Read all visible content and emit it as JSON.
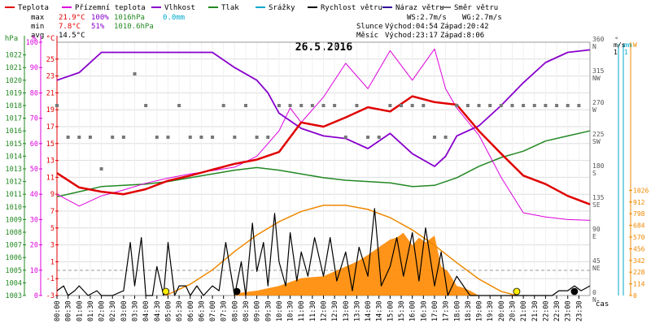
{
  "legend": [
    {
      "label": "Teplota",
      "color": "#e00000"
    },
    {
      "label": "Přízemní teplota",
      "color": "#dd00dd"
    },
    {
      "label": "Vlhkost",
      "color": "#8800cc"
    },
    {
      "label": "Tlak",
      "color": "#228822"
    },
    {
      "label": "Srážky",
      "color": "#00aacc"
    },
    {
      "label": "Rychlost větru",
      "color": "#000000"
    },
    {
      "label": "Náraz větru",
      "color": "#330099"
    },
    {
      "label": "Směr větru",
      "color": "#777777"
    }
  ],
  "stats": {
    "max_label": "max",
    "max_temp": "21.9°C",
    "max_hum": "100%",
    "max_press": "1016hPa",
    "max_rain": "0.0mm",
    "min_label": "min",
    "min_temp": "7.8°C",
    "min_hum": "51%",
    "min_press": "1010.6hPa",
    "avg_label": "avg",
    "avg_temp": "14.5°C"
  },
  "wind_info": {
    "ws": "WS:2.7m/s",
    "wg": "WG:2.7m/s"
  },
  "sun": {
    "label": "Slunce",
    "rise": "Východ:04:54",
    "set": "Západ:20:42"
  },
  "moon": {
    "label": "Měsíc",
    "rise": "Východ:23:17",
    "set": "Západ:8:06"
  },
  "title": "26.5.2016",
  "xaxis_unit": "čas",
  "colors": {
    "temp": "#e00000",
    "ground": "#dd00dd",
    "hum": "#8800cc",
    "press": "#228822",
    "rain": "#00aacc",
    "wind": "#000000",
    "gust": "#ff8800",
    "dir": "#777777",
    "sun": "#ee8800",
    "grid": "#dddddd"
  },
  "chart_data": {
    "type": "line",
    "title": "26.5.2016",
    "x_ticks": [
      "00:00",
      "00:30",
      "01:00",
      "01:30",
      "02:00",
      "02:30",
      "03:00",
      "03:30",
      "04:00",
      "04:30",
      "05:00",
      "05:30",
      "06:00",
      "06:30",
      "07:00",
      "07:30",
      "08:00",
      "08:30",
      "09:00",
      "09:30",
      "10:00",
      "10:30",
      "11:00",
      "11:30",
      "12:00",
      "12:30",
      "13:00",
      "13:30",
      "14:00",
      "14:30",
      "15:00",
      "15:30",
      "16:00",
      "16:30",
      "17:00",
      "17:30",
      "18:00",
      "18:30",
      "19:00",
      "19:30",
      "20:00",
      "20:30",
      "21:00",
      "21:30",
      "22:00",
      "22:30",
      "23:00",
      "23:30"
    ],
    "axes": {
      "hpa": {
        "label": "hPa",
        "range": [
          1003,
          1023
        ],
        "ticks": [
          1003,
          1004,
          1005,
          1006,
          1007,
          1008,
          1009,
          1010,
          1011,
          1012,
          1013,
          1014,
          1015,
          1016,
          1017,
          1018,
          1019,
          1020,
          1021,
          1022
        ]
      },
      "percent": {
        "label": "%",
        "range": [
          0,
          100
        ],
        "ticks": [
          0,
          10,
          20,
          30,
          40,
          50,
          60,
          70,
          80,
          90,
          100
        ]
      },
      "celsius": {
        "label": "°C",
        "range": [
          -3,
          27
        ],
        "ticks": [
          -3,
          -1,
          1,
          3,
          5,
          7,
          9,
          11,
          13,
          15,
          17,
          19,
          21,
          23,
          25
        ]
      },
      "degrees": {
        "label": "°",
        "range": [
          0,
          360
        ],
        "ticks": [
          "0 N",
          "45 NE",
          "90 E",
          "135 SE",
          "180 S",
          "225 SW",
          "270 W",
          "315 NW",
          "360 N"
        ]
      },
      "ms": {
        "label": "m/s",
        "range": [
          0,
          1
        ],
        "ticks": [
          0,
          1
        ]
      },
      "mm": {
        "label": "mm",
        "range": [
          0,
          1
        ],
        "ticks": [
          0,
          1
        ]
      },
      "watt": {
        "label": "W",
        "range": [
          0,
          1140
        ],
        "ticks": [
          0,
          114,
          228,
          342,
          456,
          570,
          684,
          798,
          912,
          1026
        ]
      }
    },
    "series": [
      {
        "name": "Teplota",
        "unit": "°C",
        "x": [
          0,
          1,
          2,
          3,
          4,
          5,
          6,
          7,
          8,
          9,
          10,
          11,
          12,
          13,
          14,
          15,
          16,
          17,
          18,
          19,
          20,
          21,
          22,
          23,
          24
        ],
        "values": [
          11.5,
          9.8,
          9.3,
          9.0,
          9.6,
          10.6,
          11.2,
          11.9,
          12.6,
          13.1,
          14.0,
          17.5,
          17.0,
          18.1,
          19.3,
          18.8,
          20.6,
          19.9,
          19.6,
          16.5,
          13.8,
          11.2,
          10.2,
          8.8,
          7.8
        ]
      },
      {
        "name": "Přízemní teplota",
        "unit": "°C",
        "x": [
          0,
          1,
          2,
          3,
          4,
          5,
          6,
          7,
          8,
          9,
          10,
          10.5,
          11,
          12,
          13,
          14,
          15,
          16,
          17,
          17.5,
          18,
          19,
          20,
          21,
          22,
          23,
          24
        ],
        "values": [
          9,
          7.6,
          8.8,
          9.5,
          10.3,
          10.9,
          11.4,
          11.8,
          12.2,
          13.5,
          16.5,
          19.2,
          17.5,
          20.5,
          24.5,
          21.5,
          26.0,
          22.5,
          26.2,
          21.5,
          19.2,
          16.0,
          11.0,
          6.8,
          6.3,
          6.0,
          5.9
        ]
      },
      {
        "name": "Vlhkost",
        "unit": "%",
        "x": [
          0,
          1,
          2,
          3,
          4,
          5,
          6,
          7,
          8,
          9,
          9.5,
          10,
          11,
          12,
          13,
          14,
          15,
          16,
          17,
          17.5,
          18,
          19,
          20,
          21,
          22,
          23,
          24
        ],
        "values": [
          85,
          88,
          96,
          96,
          96,
          96,
          96,
          96,
          90,
          85,
          80,
          72,
          66,
          63,
          62,
          58,
          64,
          56,
          51,
          55,
          63,
          67,
          75,
          84,
          92,
          96,
          97
        ]
      },
      {
        "name": "Tlak",
        "unit": "hPa",
        "x": [
          0,
          1,
          2,
          3,
          4,
          5,
          6,
          7,
          8,
          9,
          10,
          11,
          12,
          13,
          14,
          15,
          16,
          17,
          18,
          19,
          20,
          21,
          22,
          23,
          24
        ],
        "values": [
          1010.8,
          1011.2,
          1011.6,
          1011.7,
          1011.8,
          1012.0,
          1012.3,
          1012.6,
          1012.9,
          1013.1,
          1012.9,
          1012.6,
          1012.3,
          1012.1,
          1012.0,
          1011.9,
          1011.6,
          1011.7,
          1012.3,
          1013.2,
          1013.9,
          1014.4,
          1015.2,
          1015.6,
          1016.0
        ]
      },
      {
        "name": "Rychlost větru",
        "unit": "m/s",
        "x": [
          0,
          0.3,
          0.5,
          0.8,
          1,
          1.4,
          1.8,
          2,
          2.5,
          3,
          3.3,
          3.5,
          3.8,
          4,
          4.3,
          4.5,
          4.8,
          5,
          5.3,
          5.5,
          5.8,
          6,
          6.3,
          6.6,
          7,
          7.3,
          7.6,
          8,
          8.3,
          8.5,
          8.8,
          9,
          9.3,
          9.5,
          9.8,
          10,
          10.3,
          10.5,
          10.8,
          11,
          11.3,
          11.6,
          12,
          12.3,
          12.6,
          13,
          13.3,
          13.6,
          14,
          14.3,
          14.6,
          15,
          15.3,
          15.6,
          16,
          16.3,
          16.6,
          17,
          17.3,
          17.6,
          18,
          18.3,
          18.6,
          19,
          19.5,
          20,
          20.5,
          21,
          21.5,
          22,
          22.3,
          22.6,
          23,
          23.3,
          23.6,
          24
        ],
        "values": [
          0.05,
          0.1,
          0,
          0.05,
          0.1,
          0,
          0.05,
          0,
          0,
          0.05,
          0.55,
          0.1,
          0.6,
          0,
          0,
          0.3,
          0,
          0.55,
          0,
          0.1,
          0.1,
          0,
          0.1,
          0,
          0.1,
          0.05,
          0.55,
          0,
          0.35,
          0,
          0.75,
          0.25,
          0.55,
          0.1,
          0.85,
          0.35,
          0.1,
          0.65,
          0.15,
          0.45,
          0.2,
          0.6,
          0.2,
          0.6,
          0.15,
          0.45,
          0.05,
          0.5,
          0.2,
          0.9,
          0.1,
          0.3,
          0.6,
          0.2,
          0.65,
          0.15,
          0.7,
          0.1,
          0.45,
          0,
          0.2,
          0.1,
          0,
          0,
          0,
          0,
          0,
          0,
          0,
          0,
          0,
          0.05,
          0.05,
          0.1,
          0.05,
          0.1
        ]
      },
      {
        "name": "Sluneční záření",
        "unit": "W",
        "x": [
          4.9,
          6,
          7,
          8,
          9,
          10,
          11,
          12,
          13,
          14,
          15,
          16,
          17,
          18,
          19,
          20,
          20.7
        ],
        "values": [
          0,
          110,
          250,
          430,
          590,
          720,
          820,
          880,
          880,
          840,
          760,
          640,
          490,
          320,
          160,
          40,
          0
        ]
      },
      {
        "name": "Náraz větru",
        "unit": "m/s",
        "x": [
          8,
          9,
          10,
          11,
          12,
          13,
          13.5,
          14,
          14.5,
          15,
          15.3,
          15.6,
          16,
          16.3,
          16.6,
          17,
          17.3,
          17.6,
          18,
          18.3,
          18.6,
          19
        ],
        "values": [
          0.02,
          0.05,
          0.1,
          0.18,
          0.2,
          0.3,
          0.35,
          0.42,
          0.5,
          0.58,
          0.6,
          0.65,
          0.52,
          0.6,
          0.55,
          0.62,
          0.3,
          0.25,
          0.1,
          0.08,
          0.05,
          0
        ]
      },
      {
        "name": "Směr větru",
        "unit": "°",
        "x": [
          0,
          0.5,
          1,
          1.5,
          2,
          2.5,
          3,
          3.5,
          4,
          4.5,
          5,
          5.5,
          6,
          6.5,
          7,
          7.5,
          8,
          8.5,
          9,
          9.5,
          10,
          10.5,
          11,
          11.5,
          12,
          12.5,
          13,
          13.5,
          14,
          14.5,
          15,
          15.5,
          16,
          16.5,
          17,
          17.5,
          18,
          18.5,
          19,
          19.5,
          20,
          20.5,
          21,
          21.5,
          22,
          22.5,
          23,
          23.5
        ],
        "values": [
          270,
          225,
          225,
          225,
          180,
          225,
          225,
          315,
          270,
          225,
          225,
          270,
          225,
          225,
          225,
          270,
          225,
          270,
          225,
          225,
          270,
          270,
          270,
          270,
          270,
          270,
          225,
          270,
          225,
          225,
          270,
          270,
          270,
          270,
          225,
          225,
          270,
          270,
          270,
          270,
          270,
          270,
          270,
          270,
          270,
          270,
          270,
          270
        ]
      }
    ],
    "markers": [
      {
        "name": "Slunce východ",
        "x": 4.9,
        "color": "#ffee00"
      },
      {
        "name": "Slunce západ",
        "x": 20.7,
        "color": "#ffee00"
      },
      {
        "name": "Měsíc západ",
        "x": 8.1,
        "color": "#000000"
      },
      {
        "name": "Měsíc východ",
        "x": 23.3,
        "color": "#000000"
      }
    ],
    "grid": true
  }
}
